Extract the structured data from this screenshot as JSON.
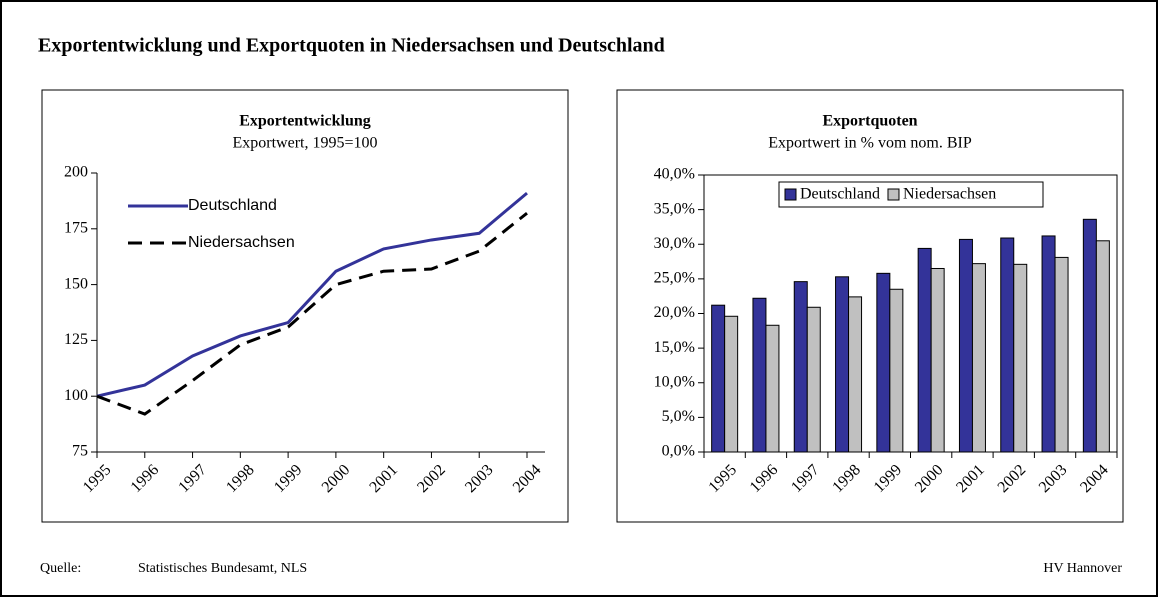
{
  "title": "Exportentwicklung und Exportquoten in Niedersachsen und Deutschland",
  "source_label": "Quelle:",
  "source": "Statistisches Bundesamt, NLS",
  "credit": "HV Hannover",
  "chart_data": [
    {
      "type": "line",
      "title": "Exportentwicklung",
      "subtitle": "Exportwert, 1995=100",
      "categories": [
        "1995",
        "1996",
        "1997",
        "1998",
        "1999",
        "2000",
        "2001",
        "2002",
        "2003",
        "2004"
      ],
      "series": [
        {
          "name": "Deutschland",
          "color": "#333399",
          "dash": false,
          "values": [
            100,
            105,
            118,
            127,
            133,
            156,
            166,
            170,
            173,
            191
          ]
        },
        {
          "name": "Niedersachsen",
          "color": "#000000",
          "dash": true,
          "values": [
            100,
            92,
            107,
            123,
            131,
            150,
            156,
            157,
            165,
            182
          ]
        }
      ],
      "ylim": [
        75,
        200
      ],
      "yticks": [
        75,
        100,
        125,
        150,
        175,
        200
      ],
      "legend": "upper left",
      "grid": false
    },
    {
      "type": "bar",
      "title": "Exportquoten",
      "subtitle": "Exportwert in % vom nom. BIP",
      "categories": [
        "1995",
        "1996",
        "1997",
        "1998",
        "1999",
        "2000",
        "2001",
        "2002",
        "2003",
        "2004"
      ],
      "series": [
        {
          "name": "Deutschland",
          "color": "#333399",
          "values": [
            21.2,
            22.2,
            24.6,
            25.3,
            25.8,
            29.4,
            30.7,
            30.9,
            31.2,
            33.6
          ]
        },
        {
          "name": "Niedersachsen",
          "color": "#c0c0c0",
          "values": [
            19.6,
            18.3,
            20.9,
            22.4,
            23.5,
            26.5,
            27.2,
            27.1,
            28.1,
            30.5
          ]
        }
      ],
      "ylim": [
        0,
        40
      ],
      "yticks": [
        {
          "value": 0,
          "label": "0,0%"
        },
        {
          "value": 5,
          "label": "5,0%"
        },
        {
          "value": 10,
          "label": "10,0%"
        },
        {
          "value": 15,
          "label": "15,0%"
        },
        {
          "value": 20,
          "label": "20,0%"
        },
        {
          "value": 25,
          "label": "25,0%"
        },
        {
          "value": 30,
          "label": "30,0%"
        },
        {
          "value": 35,
          "label": "35,0%"
        },
        {
          "value": 40,
          "label": "40,0%"
        }
      ],
      "legend": "upper center",
      "grid": false
    }
  ]
}
